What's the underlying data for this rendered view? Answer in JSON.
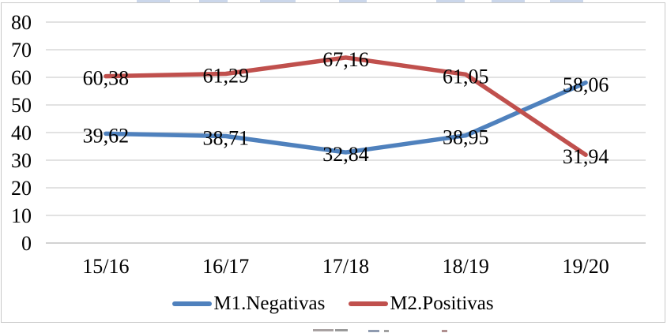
{
  "chart_data": {
    "type": "line",
    "title": "",
    "xlabel": "",
    "ylabel": "",
    "categories": [
      "15/16",
      "16/17",
      "17/18",
      "18/19",
      "19/20"
    ],
    "series": [
      {
        "name": "M1.Negativas",
        "color": "#4F81BD",
        "values": [
          39.62,
          38.71,
          32.84,
          38.95,
          58.06
        ],
        "point_labels": [
          "39,62",
          "38,71",
          "32,84",
          "38,95",
          "58,06"
        ]
      },
      {
        "name": "M2.Positivas",
        "color": "#C0504D",
        "values": [
          60.38,
          61.29,
          67.16,
          61.05,
          31.94
        ],
        "point_labels": [
          "60,38",
          "61,29",
          "67,16",
          "61,05",
          "31,94"
        ]
      }
    ],
    "y_axis": {
      "min": 0,
      "max": 80,
      "step": 10,
      "tick_labels": [
        "0",
        "10",
        "20",
        "30",
        "40",
        "50",
        "60",
        "70",
        "80"
      ]
    },
    "grid": true,
    "legend_position": "bottom",
    "decimal_separator": ",",
    "colors": {
      "gridline": "#D9D9D9",
      "axis_line": "#C4C4C4",
      "text": "#000000",
      "frame_border": "#C9C9C9"
    }
  }
}
